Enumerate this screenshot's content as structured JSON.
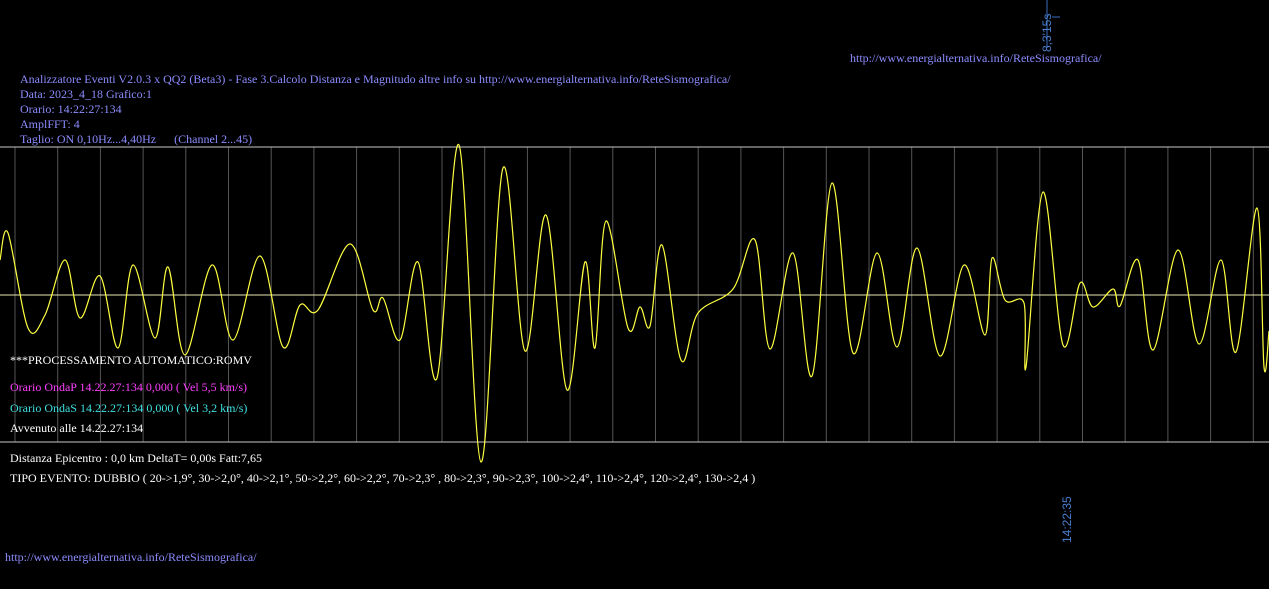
{
  "top_label": "8,3'15s",
  "top_url": "http://www.energialternativa.info/ReteSismografica/",
  "header": {
    "title": "Analizzatore Eventi V2.0.3 x QQ2 (Beta3) - Fase 3.Calcolo Distanza e Magnitudo altre info su http://www.energialternativa.info/ReteSismografica/",
    "date": "Data: 2023_4_18 Grafico:1",
    "time": "Orario: 14:22:27:134",
    "ampl": "AmplFFT: 4",
    "filter": "Taglio: ON 0,10Hz...4,40Hz      (Channel 2...45)"
  },
  "processing": "***PROCESSAMENTO AUTOMATICO:ROMV",
  "wave_p": "Orario OndaP 14.22.27:134  0,000 ( Vel 5,5 km/s)",
  "wave_s": "Orario OndaS 14.22.27:134  0,000 ( Vel 3,2 km/s)",
  "occurred": "Avvenuto alle 14.22.27:134",
  "distance": "Distanza Epicentro : 0,0 km DeltaT= 0,00s  Fatt:7,65",
  "event_type": "TIPO EVENTO: DUBBIO ( 20->1,9°, 30->2,0°, 40->2,1°, 50->2,2°, 60->2,2°, 70->2,3° , 80->2,3°, 90->2,3°, 100->2,4°, 110->2,4°, 120->2,4°, 130->2,4 )",
  "time_marker": "14:22:35",
  "footer_url": "http://www.energialternativa.info/ReteSismografica/"
}
